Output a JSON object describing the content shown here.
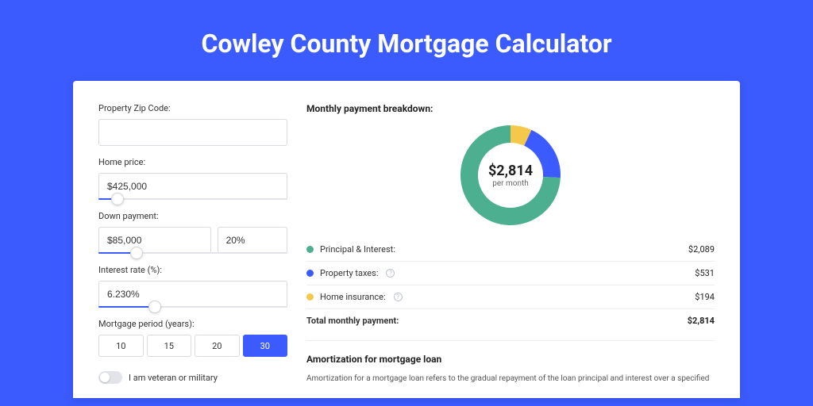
{
  "page": {
    "title": "Cowley County Mortgage Calculator",
    "background_color": "#3b5bff"
  },
  "form": {
    "zip": {
      "label": "Property Zip Code:",
      "value": ""
    },
    "home_price": {
      "label": "Home price:",
      "value": "$425,000",
      "slider_pct": 10
    },
    "down_payment": {
      "label": "Down payment:",
      "value": "$85,000",
      "pct_value": "20%",
      "slider_pct": 20
    },
    "interest_rate": {
      "label": "Interest rate (%):",
      "value": "6.230%",
      "slider_pct": 30
    },
    "period": {
      "label": "Mortgage period (years):",
      "options": [
        "10",
        "15",
        "20",
        "30"
      ],
      "active_index": 3
    },
    "veteran": {
      "label": "I am veteran or military",
      "on": false
    }
  },
  "breakdown": {
    "title": "Monthly payment breakdown:",
    "total_amount": "$2,814",
    "total_sub": "per month",
    "items": [
      {
        "label": "Principal & Interest:",
        "value": "$2,089",
        "color": "#4caf8f",
        "share": 0.742,
        "info": false
      },
      {
        "label": "Property taxes:",
        "value": "$531",
        "color": "#3b5bff",
        "share": 0.189,
        "info": true
      },
      {
        "label": "Home insurance:",
        "value": "$194",
        "color": "#f4c94b",
        "share": 0.069,
        "info": true
      }
    ],
    "total_row": {
      "label": "Total monthly payment:",
      "value": "$2,814"
    },
    "donut": {
      "thickness": 22,
      "radius": 52,
      "background": "#ffffff"
    }
  },
  "amortization": {
    "title": "Amortization for mortgage loan",
    "text": "Amortization for a mortgage loan refers to the gradual repayment of the loan principal and interest over a specified"
  }
}
